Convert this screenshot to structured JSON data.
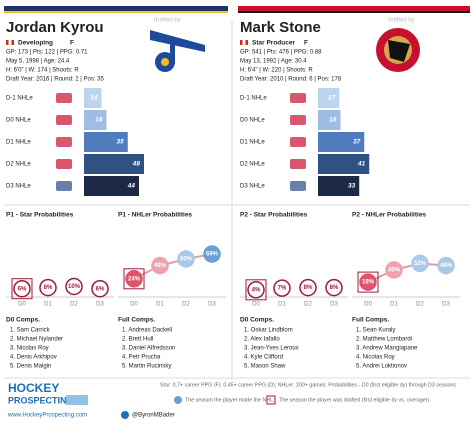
{
  "players": [
    {
      "name": "Jordan Kyrou",
      "drafted_by": "drafted by",
      "role": "Developing",
      "position": "F",
      "stats": [
        "GP: 173 | Pts: 122 | PPG: 0.71",
        "May 5, 1998 | Age: 24.4",
        "H: 6'0\" | W: 174 | Shoots: R",
        "Draft Year: 2016 | Round: 2 | Pos: 35"
      ],
      "nhle": {
        "labels": [
          "D-1 NHLe",
          "D0 NHLe",
          "D1 NHLe",
          "D2 NHLe",
          "D3 NHLe"
        ],
        "values": [
          14,
          18,
          35,
          48,
          44
        ],
        "colors": [
          "#bcd4ef",
          "#9fbde3",
          "#4f7cbc",
          "#2f5183",
          "#1c2a48"
        ]
      },
      "star": {
        "title": "P1 - Star Probabilities",
        "values": [
          6,
          8,
          10,
          6
        ],
        "value_labels": [
          "6%",
          "8%",
          "10%",
          "6%"
        ]
      },
      "nhler": {
        "title": "P1 - NHLer Probabilities",
        "values": [
          24,
          48,
          60,
          69
        ],
        "value_labels": [
          "24%",
          "48%",
          "60%",
          "69%"
        ],
        "colors": [
          "#e0546a",
          "#f0a0b0",
          "#a9c9e8",
          "#6a9ed4"
        ]
      },
      "x_labels": [
        "D0",
        "D1",
        "D2",
        "D3"
      ],
      "d0_comps": {
        "title": "D0 Comps.",
        "names": [
          "1. Sam Carrick",
          "2. Michael Nylander",
          "3. Nicolas Roy",
          "4. Denis Arkhipov",
          "5. Denis Malgin"
        ]
      },
      "full_comps": {
        "title": "Full Comps.",
        "names": [
          "1. Andreas Dackell",
          "2. Brett Hull",
          "3. Daniel Alfredsson",
          "4. Petr Prucha",
          "5. Martin Rucinsky"
        ]
      }
    },
    {
      "name": "Mark Stone",
      "drafted_by": "drafted by",
      "role": "Star Producer",
      "position": "F",
      "stats": [
        "GP: 541 | Pts: 476 | PPG: 0.88",
        "May 13, 1992 | Age: 30.4",
        "H: 6'4\" | W: 220 | Shoots: R",
        "Draft Year: 2010 | Round: 6 | Pos: 178"
      ],
      "nhle": {
        "labels": [
          "D-1 NHLe",
          "D0 NHLe",
          "D1 NHLe",
          "D2 NHLe",
          "D3 NHLe"
        ],
        "values": [
          17,
          18,
          37,
          41,
          33
        ],
        "colors": [
          "#bcd4ef",
          "#9fbde3",
          "#4f7cbc",
          "#2f5183",
          "#1c2a48"
        ]
      },
      "star": {
        "title": "P2 - Star Probabilities",
        "values": [
          4,
          7,
          8,
          8
        ],
        "value_labels": [
          "4%",
          "7%",
          "8%",
          "8%"
        ]
      },
      "nhler": {
        "title": "P2 - NHLer Probabilities",
        "values": [
          18,
          40,
          52,
          48
        ],
        "value_labels": [
          "18%",
          "40%",
          "52%",
          "48%"
        ],
        "colors": [
          "#e0546a",
          "#f0a0b0",
          "#a9c9e8",
          "#a9c9e8"
        ]
      },
      "x_labels": [
        "D0",
        "D1",
        "D2",
        "D3"
      ],
      "d0_comps": {
        "title": "D0 Comps.",
        "names": [
          "1. Oskar Lindblom",
          "2. Alex Iafallo",
          "3. Jean-Yves Leroux",
          "4. Kyle Clifford",
          "5. Mason Shaw"
        ]
      },
      "full_comps": {
        "title": "Full Comps.",
        "names": [
          "1. Sean Kuraly",
          "2. Matthew Lombardi",
          "3. Andrew Mangiapane",
          "4. Nicolas Roy",
          "5. Andrei Loktionov"
        ]
      }
    }
  ],
  "footer": {
    "brand": [
      "HOCKEY",
      "PROSPECTING"
    ],
    "website": "www.HockeyProspecting.com",
    "twitter": "@ByronMBader",
    "definition": "Star: 0.7+ career PPG (F), 0.45+ career PPG (D); NHLer: 200+ games; Probabilities - D0 (first eligible dy) through D3 seasons",
    "legend_nhl": "The season the player made the NHL;",
    "legend_drafted": "The season the player was drafted (first eligible dy vs. overager)"
  }
}
